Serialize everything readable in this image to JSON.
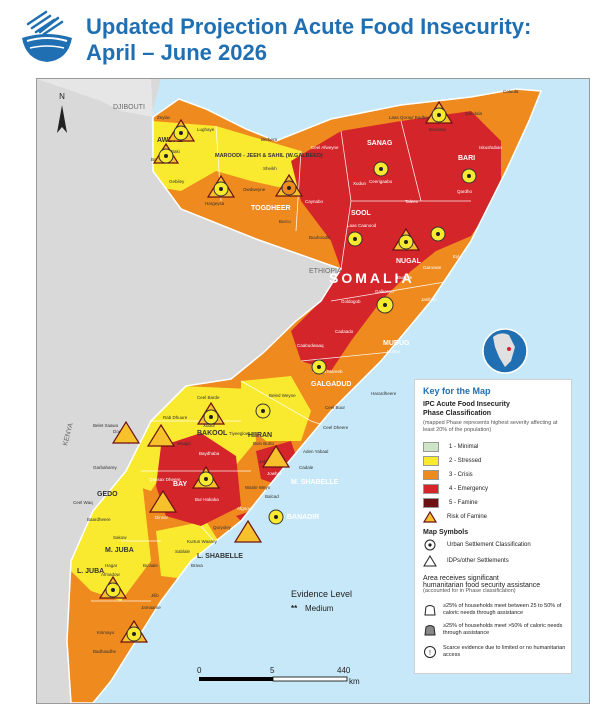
{
  "title": {
    "line1": "Updated Projection Acute Food Insecurity:",
    "line2": "April – June 2026"
  },
  "colors": {
    "title": "#1f6fb2",
    "phase1": "#cde5c6",
    "phase2": "#f9ea2f",
    "phase3": "#ee8a1e",
    "phase4": "#d4252b",
    "phase5": "#6b1214",
    "sea": "#c7e8f8",
    "outside": "#d9d9d9"
  },
  "icons": [
    "ipc-logo-bowl-icon",
    "north-arrow-icon",
    "urban-settlement-icon",
    "idp-settlement-icon",
    "risk-of-famine-icon",
    "humanitarian-assistance-icon",
    "scarce-evidence-icon",
    "globe-inset-icon"
  ],
  "map": {
    "north": "N",
    "country_label": "SOMALIA",
    "neighbors": [
      "DJIBOUTI",
      "ETHIOPIA",
      "KENYA"
    ],
    "regions": [
      "AWDAL",
      "MAROODI - JEEH & SAHIL (W.GALBEED)",
      "TOGDHEER",
      "SANAG",
      "BARI",
      "SOOL",
      "NUGAL",
      "MUDUG",
      "GALGADUD",
      "HIIRAN",
      "BAKOOL",
      "BAY",
      "GEDO",
      "M. SHABELLE",
      "BANADIR",
      "L. SHABELLE",
      "M. JUBA",
      "L. JUBA"
    ],
    "places": [
      "Zeylac",
      "Lughaye",
      "Baki",
      "Borama",
      "Gebiley",
      "Berbera",
      "Sheikh",
      "Hargeysa",
      "Owdweyne",
      "Burco",
      "Caynabo",
      "Ceel Afweyne",
      "Erigavo",
      "Ceerigaabo",
      "Laas Qoray/ Badhan",
      "Bossaso",
      "Qandala",
      "Caluula",
      "Iskushuban",
      "Qardho",
      "Bandar Beyla",
      "Taleex",
      "Xudun",
      "Laas Caanood",
      "Buuhoodle",
      "Garoowe",
      "Eyl",
      "Burtinle",
      "Jariiban",
      "Galkacyo",
      "Goldogob",
      "Hobyo",
      "Cadaado",
      "Caabudwaaq",
      "Dhusa Mareeb",
      "Ceel Buur",
      "Harardheere",
      "Ceel Dheere",
      "Beled Weyne",
      "Bulo Burto",
      "Aden Yabaal",
      "Jalalaqsi",
      "Jowhar",
      "Cadale",
      "Balcad",
      "Ceel Barde",
      "Rab Dhuure",
      "Waajid",
      "Xudur",
      "Tiyeeglow",
      "Baydhaba",
      "Qansax Dheere",
      "Bur Hakaba",
      "Dinsor",
      "Luuq",
      "Belet Xaawo",
      "Doolow",
      "Garbaharey",
      "Ceel Waq",
      "Baardheere",
      "Sakow",
      "Bu'aale",
      "Jilib",
      "Jamaame",
      "Kismayo",
      "Afmadow",
      "Hagar",
      "Badhaadhe",
      "Qoryoley",
      "Kurtun Waarey",
      "Sablale",
      "Brava",
      "Afgooye",
      "Wanle Weyn",
      "Marka"
    ],
    "scale_labels": [
      "0",
      "5",
      "440",
      "km"
    ],
    "evidence_title": "Evidence Level",
    "evidence_marker": "**",
    "evidence_value": "Medium"
  },
  "legend": {
    "title": "Key for the Map",
    "subtitle1": "IPC Acute Food Insecurity",
    "subtitle2": "Phase Classification",
    "note": "(mapped Phase represents highest severity affecting at least 20% of the population)",
    "phases": [
      {
        "label": "1 - Minimal",
        "color": "#cde5c6"
      },
      {
        "label": "2 - Stressed",
        "color": "#f9ea2f"
      },
      {
        "label": "3 - Crisis",
        "color": "#ee8a1e"
      },
      {
        "label": "4 - Emergency",
        "color": "#d4252b"
      },
      {
        "label": "5 - Famine",
        "color": "#6b1214"
      }
    ],
    "risk_label": "Risk of Famine",
    "symbols_title": "Map Symbols",
    "urban_label": "Urban Settlement Classification",
    "idp_label": "IDPs/other Settlements",
    "assist_title1": "Area receives significant",
    "assist_title2": "humanitarian food security assistance",
    "assist_note": "(accounted for in Phase classification)",
    "assist1": "≥25% of households meet between 25 to 50% of caloric needs through assistance",
    "assist2": "≥25% of households meet >50% of caloric needs through assistance",
    "scarce": "Scarce evidence due to limited or no humanitarian access"
  }
}
